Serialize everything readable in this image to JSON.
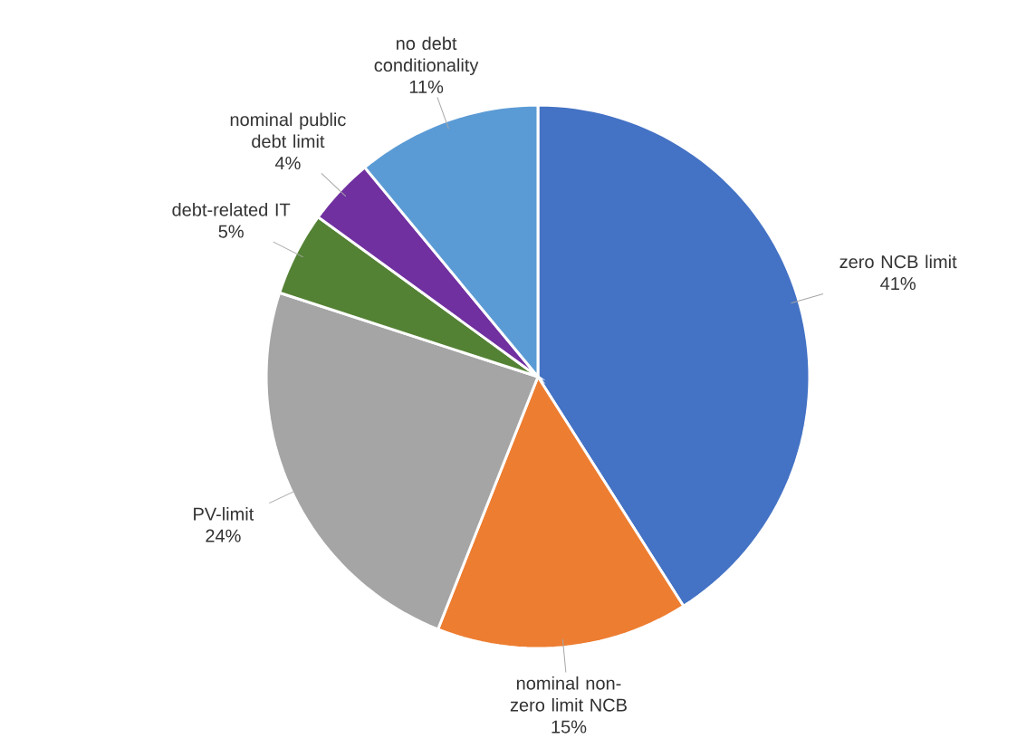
{
  "chart_data": {
    "type": "pie",
    "categories": [
      "zero NCB limit",
      "nominal non-zero limit NCB",
      "PV-limit",
      "debt-related IT",
      "nominal public debt limit",
      "no debt conditionality"
    ],
    "values": [
      41,
      15,
      24,
      5,
      4,
      11
    ],
    "value_labels": [
      "41%",
      "15%",
      "24%",
      "5%",
      "4%",
      "11%"
    ],
    "colors": [
      "#4472c4",
      "#ed7d31",
      "#a5a5a5",
      "#548235",
      "#7030a0",
      "#5b9bd5"
    ]
  }
}
